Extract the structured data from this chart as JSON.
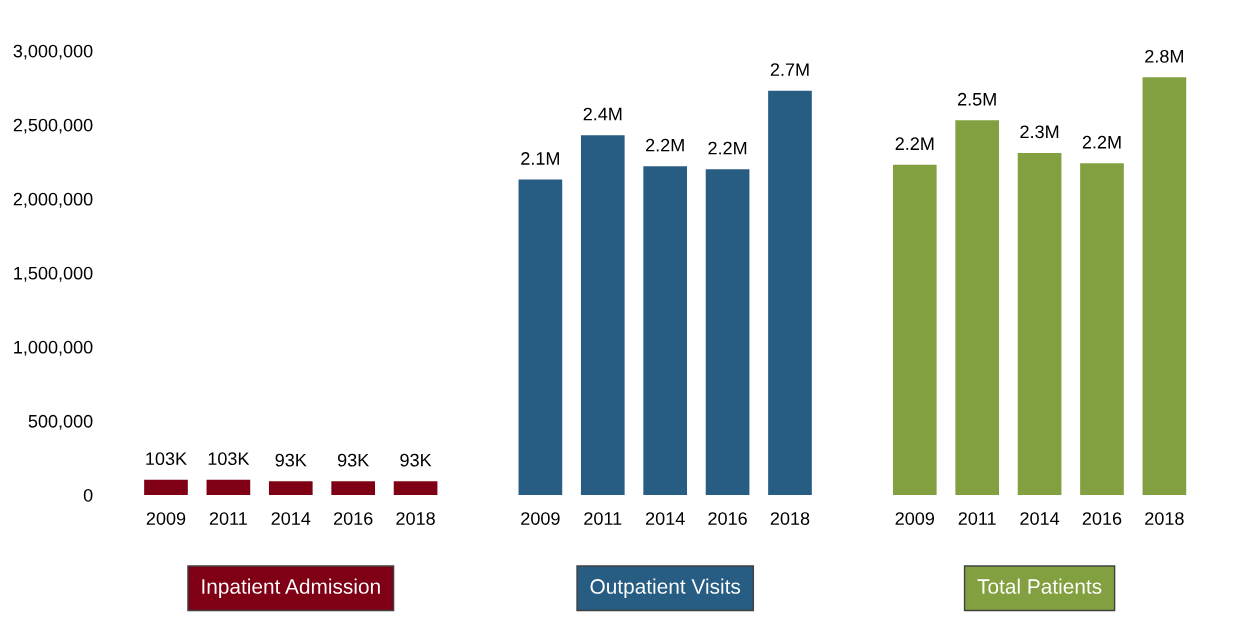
{
  "chart_data": {
    "type": "bar",
    "categories": [
      "2009",
      "2011",
      "2014",
      "2016",
      "2018",
      null,
      "2009",
      "2011",
      "2014",
      "2016",
      "2018",
      null,
      "2009",
      "2011",
      "2014",
      "2016",
      "2018"
    ],
    "series": [
      {
        "name": "Inpatient Admission",
        "color": "#7f0015",
        "values": [
          103000,
          103000,
          93000,
          93000,
          93000,
          null,
          null,
          null,
          null,
          null,
          null,
          null,
          null,
          null,
          null,
          null,
          null
        ],
        "value_labels": [
          "103K",
          "103K",
          "93K",
          "93K",
          "93K",
          null,
          null,
          null,
          null,
          null,
          null,
          null,
          null,
          null,
          null,
          null,
          null
        ]
      },
      {
        "name": "Outpatient Visits",
        "color": "#275d83",
        "values": [
          null,
          null,
          null,
          null,
          null,
          null,
          2130000,
          2430000,
          2220000,
          2200000,
          2730000,
          null,
          null,
          null,
          null,
          null,
          null
        ],
        "value_labels": [
          null,
          null,
          null,
          null,
          null,
          null,
          "2.1M",
          "2.4M",
          "2.2M",
          "2.2M",
          "2.7M",
          null,
          null,
          null,
          null,
          null,
          null
        ]
      },
      {
        "name": "Total Patients",
        "color": "#82a03f",
        "values": [
          null,
          null,
          null,
          null,
          null,
          null,
          null,
          null,
          null,
          null,
          null,
          null,
          2230000,
          2530000,
          2310000,
          2240000,
          2820000
        ],
        "value_labels": [
          null,
          null,
          null,
          null,
          null,
          null,
          null,
          null,
          null,
          null,
          null,
          null,
          "2.2M",
          "2.5M",
          "2.3M",
          "2.2M",
          "2.8M"
        ]
      }
    ],
    "ylim": [
      0,
      3000000
    ],
    "yticks": [
      0,
      {
        "value": 500000,
        "label": "500,000"
      },
      {
        "value": 1000000,
        "label": "1,000,000"
      },
      {
        "value": 1500000,
        "label": "1,500,000"
      },
      {
        "value": 2000000,
        "label": "2,000,000"
      },
      {
        "value": 2500000,
        "label": "2,500,000"
      },
      {
        "value": 3000000,
        "label": "3,000,000"
      }
    ],
    "grid": false,
    "legend": false
  }
}
